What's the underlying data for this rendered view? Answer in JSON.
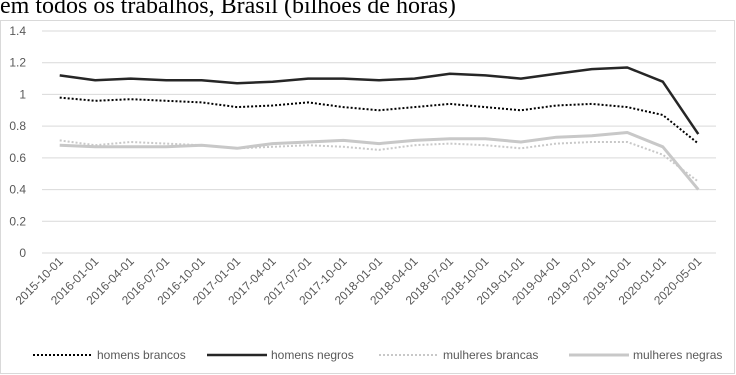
{
  "chart_data": {
    "type": "line",
    "title": "em todos os trabalhos, Brasil (bilhões de horas)",
    "x": [
      "2015-10-01",
      "2016-01-01",
      "2016-04-01",
      "2016-07-01",
      "2016-10-01",
      "2017-01-01",
      "2017-04-01",
      "2017-07-01",
      "2017-10-01",
      "2018-01-01",
      "2018-04-01",
      "2018-07-01",
      "2018-10-01",
      "2019-01-01",
      "2019-04-01",
      "2019-07-01",
      "2019-10-01",
      "2020-01-01",
      "2020-05-01"
    ],
    "ylim": [
      0,
      1.4
    ],
    "yticks": [
      "0",
      "0.2",
      "0.4",
      "0.6",
      "0.8",
      "1",
      "1.2",
      "1.4"
    ],
    "grid": true,
    "legend_position": "bottom",
    "series": [
      {
        "name": "homens brancos",
        "color": "#000000",
        "style": "dotted",
        "values": [
          0.98,
          0.96,
          0.97,
          0.96,
          0.95,
          0.92,
          0.93,
          0.95,
          0.92,
          0.9,
          0.92,
          0.94,
          0.92,
          0.9,
          0.93,
          0.94,
          0.92,
          0.87,
          0.69
        ]
      },
      {
        "name": "homens negros",
        "color": "#262626",
        "style": "solid",
        "values": [
          1.12,
          1.09,
          1.1,
          1.09,
          1.09,
          1.07,
          1.08,
          1.1,
          1.1,
          1.09,
          1.1,
          1.13,
          1.12,
          1.1,
          1.13,
          1.16,
          1.17,
          1.08,
          0.75
        ]
      },
      {
        "name": "mulheres brancas",
        "color": "#c8c8c8",
        "style": "dotted",
        "values": [
          0.71,
          0.68,
          0.7,
          0.69,
          0.68,
          0.66,
          0.67,
          0.68,
          0.67,
          0.65,
          0.68,
          0.69,
          0.68,
          0.66,
          0.69,
          0.7,
          0.7,
          0.62,
          0.45
        ]
      },
      {
        "name": "mulheres negras",
        "color": "#c8c8c8",
        "style": "solid",
        "values": [
          0.68,
          0.67,
          0.67,
          0.67,
          0.68,
          0.66,
          0.69,
          0.7,
          0.71,
          0.69,
          0.71,
          0.72,
          0.72,
          0.7,
          0.73,
          0.74,
          0.76,
          0.67,
          0.4
        ]
      }
    ]
  }
}
